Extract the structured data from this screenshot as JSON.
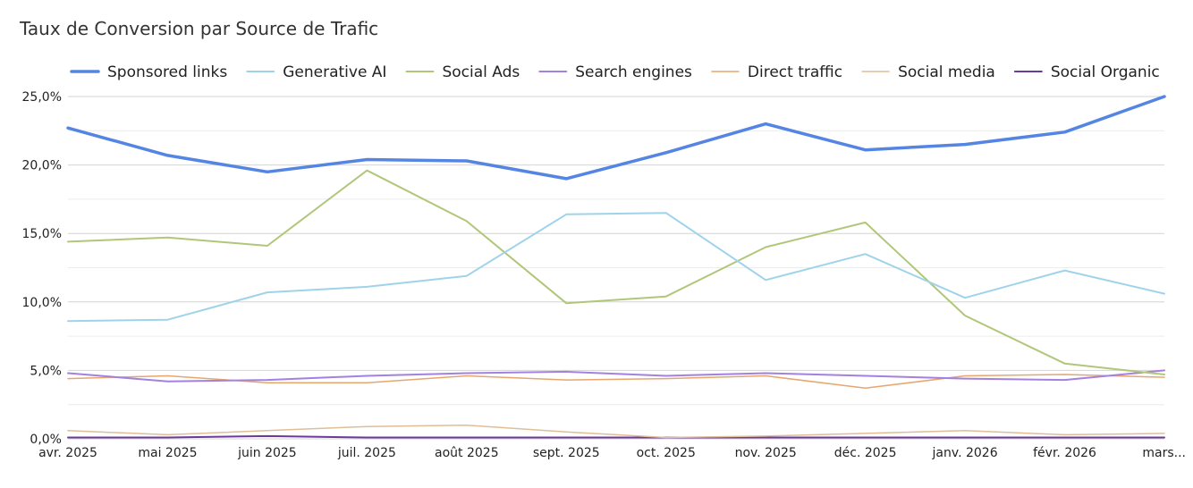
{
  "chart_data": {
    "type": "line",
    "title": "Taux de Conversion par Source de Trafic",
    "xlabel": "",
    "ylabel": "",
    "ylim": [
      0,
      25
    ],
    "y_ticks": [
      "0,0%",
      "5,0%",
      "10,0%",
      "15,0%",
      "20,0%",
      "25,0%"
    ],
    "y_tick_values": [
      0,
      5,
      10,
      15,
      20,
      25
    ],
    "grid": true,
    "legend_position": "top",
    "categories": [
      "avr. 2025",
      "mai 2025",
      "juin 2025",
      "juil. 2025",
      "août 2025",
      "sept. 2025",
      "oct. 2025",
      "nov. 2025",
      "déc. 2025",
      "janv. 2026",
      "févr. 2026",
      "mars..."
    ],
    "series": [
      {
        "name": "Sponsored links",
        "color": "#5585e3",
        "width": 3.5,
        "values": [
          22.7,
          20.7,
          19.5,
          20.4,
          20.3,
          19.0,
          20.9,
          23.0,
          21.1,
          21.5,
          22.4,
          25.0
        ]
      },
      {
        "name": "Generative AI",
        "color": "#9fd3ea",
        "width": 2,
        "values": [
          8.6,
          8.7,
          10.7,
          11.1,
          11.9,
          16.4,
          16.5,
          11.6,
          13.5,
          10.3,
          12.3,
          10.6
        ]
      },
      {
        "name": "Social Ads",
        "color": "#b0c77a",
        "width": 2,
        "values": [
          14.4,
          14.7,
          14.1,
          19.6,
          15.9,
          9.9,
          10.4,
          14.0,
          15.8,
          9.0,
          5.5,
          4.7
        ]
      },
      {
        "name": "Search engines",
        "color": "#a381e0",
        "width": 2,
        "values": [
          4.8,
          4.2,
          4.3,
          4.6,
          4.8,
          4.9,
          4.6,
          4.8,
          4.6,
          4.4,
          4.3,
          5.0
        ]
      },
      {
        "name": "Direct traffic",
        "color": "#e8a66e",
        "width": 1.5,
        "values": [
          4.4,
          4.6,
          4.1,
          4.1,
          4.6,
          4.3,
          4.4,
          4.6,
          3.7,
          4.6,
          4.7,
          4.5
        ]
      },
      {
        "name": "Social media",
        "color": "#dfbe98",
        "width": 1.5,
        "values": [
          0.6,
          0.3,
          0.6,
          0.9,
          1.0,
          0.5,
          0.1,
          0.2,
          0.4,
          0.6,
          0.3,
          0.4
        ]
      },
      {
        "name": "Social Organic",
        "color": "#6c3a9a",
        "width": 2,
        "values": [
          0.1,
          0.1,
          0.2,
          0.1,
          0.1,
          0.1,
          0.1,
          0.1,
          0.1,
          0.1,
          0.1,
          0.1
        ]
      }
    ]
  }
}
